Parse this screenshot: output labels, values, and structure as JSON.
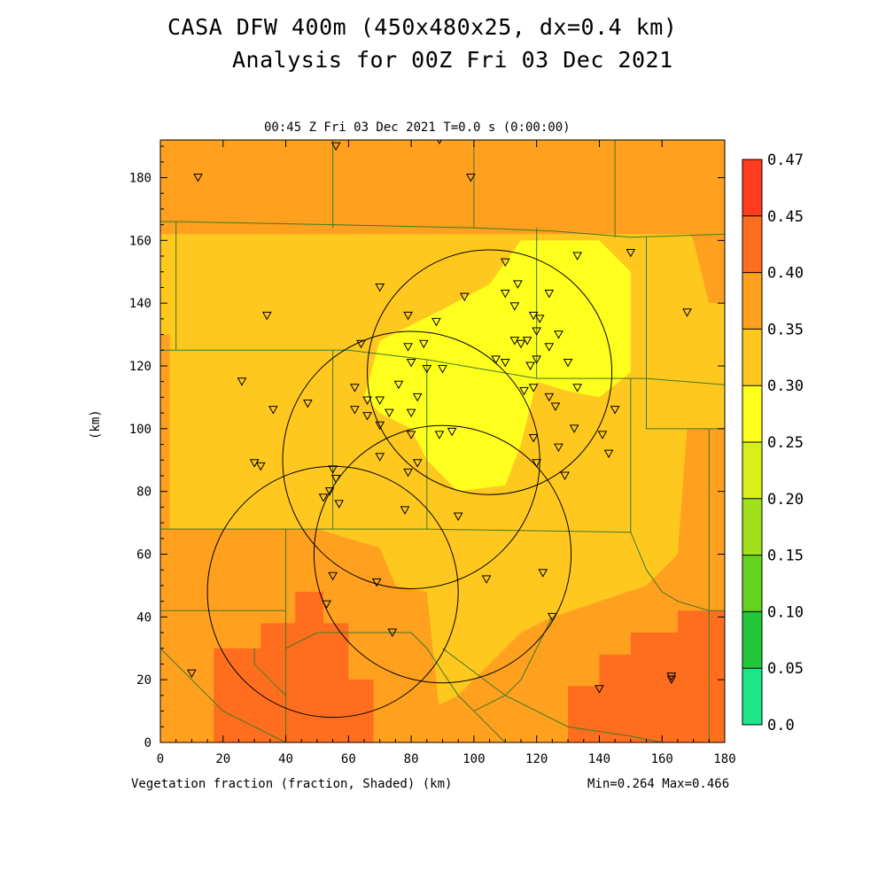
{
  "header": {
    "title_line1": "CASA DFW 400m (450x480x25, dx=0.4 km)",
    "title_line2": "Analysis for 00Z Fri 03 Dec 2021",
    "valid_time": "00:45 Z Fri 03 Dec 2021   T=0.0 s (0:00:00)"
  },
  "footer": {
    "field_label": "Vegetation fraction (fraction, Shaded)  (km)",
    "minmax": "Min=0.264 Max=0.466"
  },
  "chart_data": {
    "type": "heatmap",
    "title": "CASA DFW 400m (450x480x25, dx=0.4 km)",
    "subtitle": "Analysis for 00Z Fri 03 Dec 2021",
    "ylabel": "(km)",
    "xlabel": "(km)",
    "xlim": [
      0,
      180
    ],
    "ylim": [
      0,
      192
    ],
    "x_ticks": [
      0,
      20,
      40,
      60,
      80,
      100,
      120,
      140,
      160,
      180
    ],
    "y_ticks": [
      0,
      20,
      40,
      60,
      80,
      100,
      120,
      140,
      160,
      180
    ],
    "colorbar": {
      "levels": [
        "0.0",
        "0.05",
        "0.10",
        "0.15",
        "0.20",
        "0.25",
        "0.30",
        "0.35",
        "0.40",
        "0.45",
        "0.47"
      ],
      "colors": [
        "#1de58a",
        "#23c83a",
        "#64d21e",
        "#a0e01c",
        "#d8f01a",
        "#ffff1e",
        "#ffc81e",
        "#ffa01e",
        "#ff6e1e",
        "#ff3c1e",
        "#e63232"
      ]
    },
    "field_min": 0.264,
    "field_max": 0.466,
    "regions": [
      {
        "value": 0.35,
        "poly": [
          [
            0,
            192
          ],
          [
            180,
            192
          ],
          [
            180,
            0
          ],
          [
            0,
            0
          ]
        ]
      },
      {
        "value": 0.32,
        "poly": [
          [
            0,
            192
          ],
          [
            180,
            192
          ],
          [
            180,
            0
          ],
          [
            0,
            0
          ]
        ]
      },
      {
        "value": 0.37,
        "poly": [
          [
            70,
            192
          ],
          [
            180,
            192
          ],
          [
            180,
            162
          ],
          [
            168,
            162
          ],
          [
            165,
            175
          ],
          [
            140,
            182
          ],
          [
            70,
            182
          ]
        ]
      },
      {
        "value": 0.37,
        "poly": [
          [
            0,
            68
          ],
          [
            50,
            68
          ],
          [
            70,
            62
          ],
          [
            75,
            50
          ],
          [
            85,
            48
          ],
          [
            90,
            0
          ],
          [
            0,
            0
          ]
        ]
      },
      {
        "value": 0.37,
        "poly": [
          [
            85,
            0
          ],
          [
            180,
            0
          ],
          [
            180,
            100
          ],
          [
            168,
            100
          ],
          [
            165,
            60
          ],
          [
            160,
            55
          ],
          [
            155,
            50
          ],
          [
            140,
            45
          ],
          [
            125,
            40
          ],
          [
            115,
            35
          ],
          [
            105,
            25
          ],
          [
            95,
            15
          ],
          [
            85,
            10
          ]
        ]
      },
      {
        "value": 0.37,
        "poly": [
          [
            0,
            130
          ],
          [
            3,
            130
          ],
          [
            3,
            68
          ],
          [
            0,
            68
          ]
        ]
      },
      {
        "value": 0.37,
        "poly": [
          [
            150,
            190
          ],
          [
            180,
            190
          ],
          [
            180,
            140
          ],
          [
            175,
            140
          ],
          [
            170,
            160
          ],
          [
            165,
            170
          ],
          [
            155,
            175
          ]
        ]
      },
      {
        "value": 0.42,
        "poly": [
          [
            17,
            0
          ],
          [
            17,
            30
          ],
          [
            32,
            30
          ],
          [
            32,
            38
          ],
          [
            43,
            38
          ],
          [
            43,
            48
          ],
          [
            52,
            48
          ],
          [
            52,
            38
          ],
          [
            60,
            38
          ],
          [
            60,
            20
          ],
          [
            68,
            20
          ],
          [
            68,
            0
          ]
        ]
      },
      {
        "value": 0.42,
        "poly": [
          [
            130,
            0
          ],
          [
            180,
            0
          ],
          [
            180,
            42
          ],
          [
            165,
            42
          ],
          [
            165,
            35
          ],
          [
            150,
            35
          ],
          [
            150,
            28
          ],
          [
            140,
            28
          ],
          [
            140,
            18
          ],
          [
            130,
            18
          ]
        ]
      },
      {
        "value": 0.44,
        "poly": [
          [
            155,
            0
          ],
          [
            180,
            0
          ],
          [
            180,
            5
          ],
          [
            155,
            5
          ]
        ]
      },
      {
        "value": 0.27,
        "poly": [
          [
            65,
            110
          ],
          [
            70,
            128
          ],
          [
            90,
            138
          ],
          [
            105,
            146
          ],
          [
            115,
            160
          ],
          [
            140,
            160
          ],
          [
            150,
            150
          ],
          [
            150,
            118
          ],
          [
            140,
            110
          ],
          [
            130,
            112
          ],
          [
            120,
            115
          ],
          [
            115,
            95
          ],
          [
            110,
            82
          ],
          [
            95,
            80
          ],
          [
            85,
            90
          ],
          [
            80,
            100
          ],
          [
            70,
            105
          ]
        ]
      },
      {
        "value": 0.35,
        "poly": [
          [
            0,
            192
          ],
          [
            180,
            192
          ],
          [
            180,
            162
          ],
          [
            0,
            162
          ]
        ]
      }
    ],
    "county_lines": [
      [
        [
          0,
          166
        ],
        [
          5,
          166
        ],
        [
          55,
          165
        ],
        [
          100,
          164
        ],
        [
          125,
          163
        ],
        [
          150,
          161
        ],
        [
          180,
          162
        ]
      ],
      [
        [
          5,
          166
        ],
        [
          5,
          125
        ]
      ],
      [
        [
          0,
          125
        ],
        [
          60,
          125
        ],
        [
          85,
          122
        ],
        [
          120,
          116
        ],
        [
          155,
          116
        ],
        [
          180,
          114
        ]
      ],
      [
        [
          0,
          68
        ],
        [
          85,
          68
        ],
        [
          150,
          67
        ]
      ],
      [
        [
          55,
          192
        ],
        [
          55,
          164
        ]
      ],
      [
        [
          100,
          192
        ],
        [
          100,
          164
        ]
      ],
      [
        [
          145,
          192
        ],
        [
          145,
          161
        ]
      ],
      [
        [
          55,
          125
        ],
        [
          55,
          68
        ]
      ],
      [
        [
          85,
          122
        ],
        [
          85,
          68
        ]
      ],
      [
        [
          120,
          164
        ],
        [
          120,
          116
        ]
      ],
      [
        [
          155,
          161
        ],
        [
          155,
          116
        ]
      ],
      [
        [
          150,
          116
        ],
        [
          150,
          67
        ]
      ],
      [
        [
          155,
          116
        ],
        [
          155,
          100
        ],
        [
          180,
          100
        ]
      ],
      [
        [
          175,
          100
        ],
        [
          175,
          0
        ]
      ],
      [
        [
          40,
          68
        ],
        [
          40,
          0
        ]
      ],
      [
        [
          0,
          42
        ],
        [
          40,
          42
        ]
      ],
      [
        [
          0,
          30
        ],
        [
          10,
          20
        ],
        [
          20,
          10
        ],
        [
          40,
          0
        ]
      ],
      [
        [
          30,
          30
        ],
        [
          30,
          25
        ],
        [
          35,
          20
        ],
        [
          40,
          15
        ]
      ],
      [
        [
          40,
          30
        ],
        [
          50,
          35
        ],
        [
          80,
          35
        ],
        [
          85,
          30
        ],
        [
          95,
          15
        ],
        [
          100,
          10
        ],
        [
          105,
          5
        ],
        [
          110,
          0
        ]
      ],
      [
        [
          150,
          67
        ],
        [
          155,
          55
        ],
        [
          160,
          48
        ],
        [
          165,
          45
        ],
        [
          175,
          42
        ],
        [
          180,
          42
        ]
      ],
      [
        [
          125,
          40
        ],
        [
          120,
          30
        ],
        [
          115,
          20
        ],
        [
          110,
          15
        ],
        [
          100,
          10
        ]
      ],
      [
        [
          90,
          30
        ],
        [
          110,
          15
        ],
        [
          130,
          5
        ],
        [
          150,
          2
        ],
        [
          160,
          0
        ]
      ]
    ],
    "radar_rings": [
      {
        "cx": 105,
        "cy": 118,
        "r": 39
      },
      {
        "cx": 80,
        "cy": 90,
        "r": 41
      },
      {
        "cx": 90,
        "cy": 60,
        "r": 41
      },
      {
        "cx": 55,
        "cy": 48,
        "r": 40
      }
    ],
    "stations": [
      [
        12,
        180
      ],
      [
        56,
        190
      ],
      [
        89,
        192
      ],
      [
        99,
        180
      ],
      [
        150,
        156
      ],
      [
        133,
        155
      ],
      [
        110,
        153
      ],
      [
        114,
        146
      ],
      [
        124,
        143
      ],
      [
        110,
        143
      ],
      [
        97,
        142
      ],
      [
        70,
        145
      ],
      [
        34,
        136
      ],
      [
        79,
        136
      ],
      [
        88,
        134
      ],
      [
        113,
        139
      ],
      [
        119,
        136
      ],
      [
        121,
        135
      ],
      [
        120,
        131
      ],
      [
        127,
        130
      ],
      [
        168,
        137
      ],
      [
        113,
        128
      ],
      [
        115,
        127
      ],
      [
        117,
        128
      ],
      [
        64,
        127
      ],
      [
        79,
        126
      ],
      [
        84,
        127
      ],
      [
        80,
        121
      ],
      [
        85,
        119
      ],
      [
        90,
        119
      ],
      [
        107,
        122
      ],
      [
        110,
        121
      ],
      [
        118,
        120
      ],
      [
        120,
        122
      ],
      [
        124,
        126
      ],
      [
        130,
        121
      ],
      [
        26,
        115
      ],
      [
        62,
        113
      ],
      [
        66,
        109
      ],
      [
        70,
        109
      ],
      [
        73,
        105
      ],
      [
        76,
        114
      ],
      [
        82,
        110
      ],
      [
        70,
        101
      ],
      [
        62,
        106
      ],
      [
        66,
        104
      ],
      [
        80,
        105
      ],
      [
        47,
        108
      ],
      [
        36,
        106
      ],
      [
        116,
        112
      ],
      [
        119,
        113
      ],
      [
        124,
        110
      ],
      [
        126,
        107
      ],
      [
        133,
        113
      ],
      [
        145,
        106
      ],
      [
        141,
        98
      ],
      [
        132,
        100
      ],
      [
        127,
        94
      ],
      [
        119,
        97
      ],
      [
        143,
        92
      ],
      [
        80,
        98
      ],
      [
        89,
        98
      ],
      [
        93,
        99
      ],
      [
        55,
        87
      ],
      [
        56,
        84
      ],
      [
        30,
        89
      ],
      [
        32,
        88
      ],
      [
        54,
        80
      ],
      [
        52,
        78
      ],
      [
        57,
        76
      ],
      [
        78,
        74
      ],
      [
        95,
        72
      ],
      [
        70,
        91
      ],
      [
        79,
        86
      ],
      [
        82,
        89
      ],
      [
        120,
        89
      ],
      [
        129,
        85
      ],
      [
        122,
        54
      ],
      [
        104,
        52
      ],
      [
        55,
        53
      ],
      [
        69,
        51
      ],
      [
        53,
        44
      ],
      [
        74,
        35
      ],
      [
        125,
        40
      ],
      [
        10,
        22
      ],
      [
        140,
        17
      ],
      [
        163,
        20
      ],
      [
        163,
        21
      ]
    ]
  }
}
